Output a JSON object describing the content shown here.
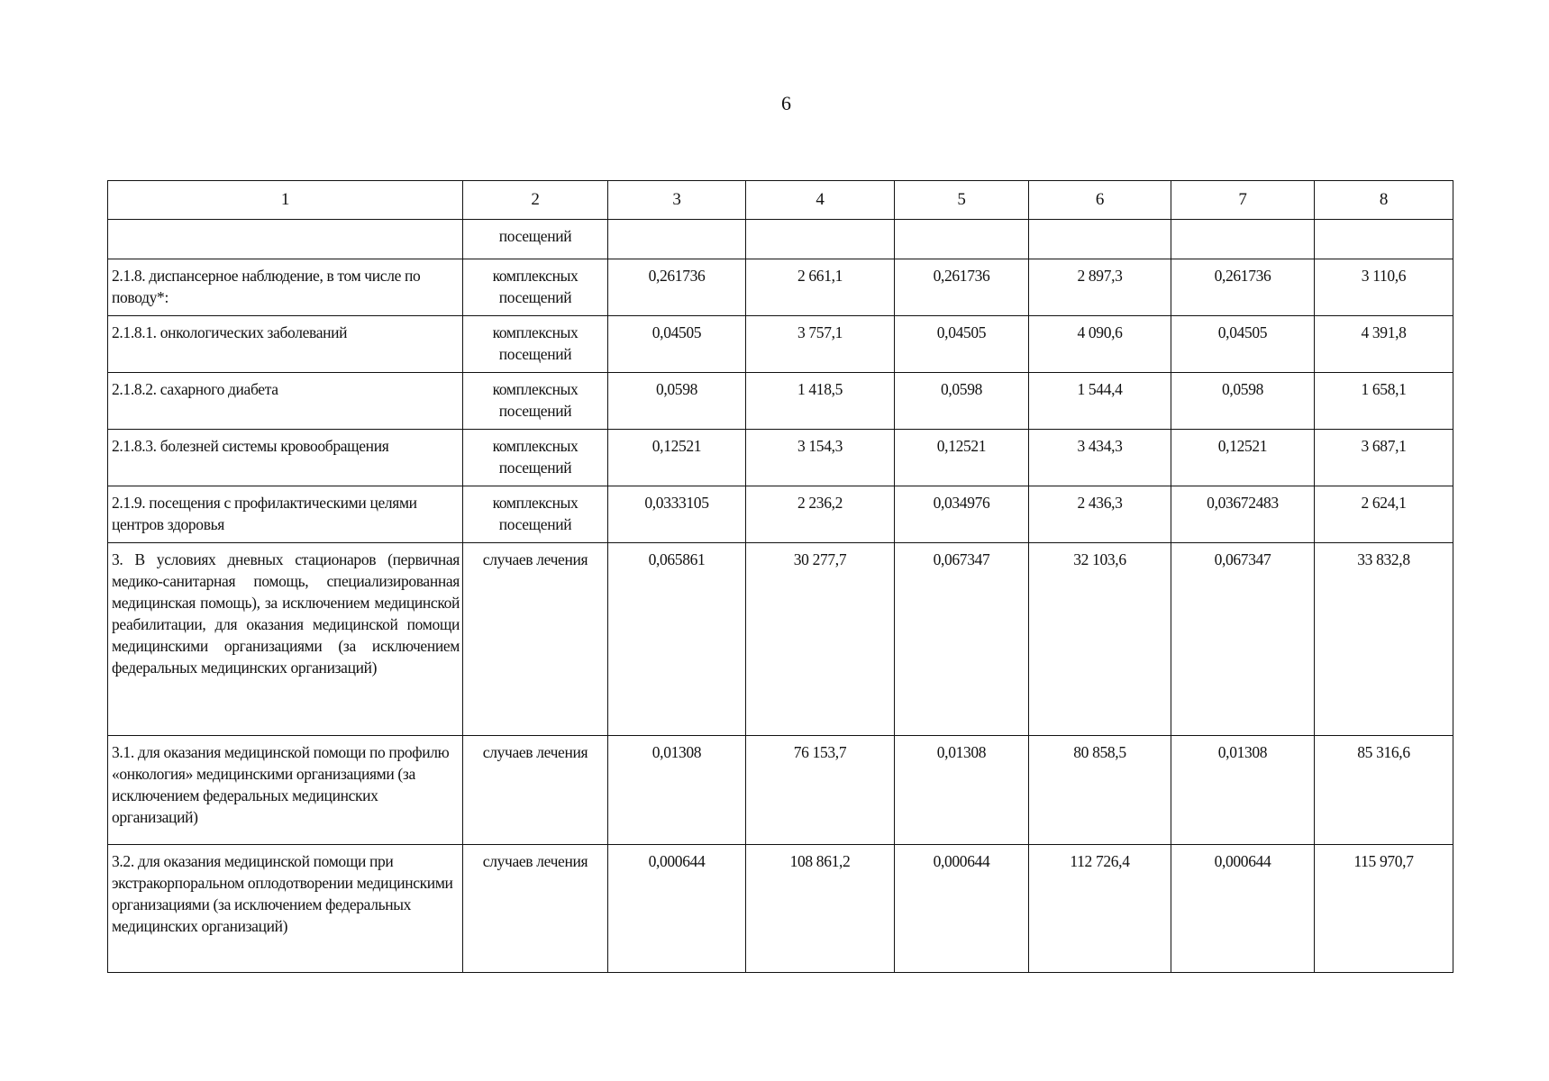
{
  "page_number": "6",
  "table": {
    "header": [
      "1",
      "2",
      "3",
      "4",
      "5",
      "6",
      "7",
      "8"
    ],
    "rows": [
      {
        "name": "",
        "unit": "посещений",
        "values": [
          "",
          "",
          "",
          "",
          "",
          ""
        ]
      },
      {
        "name": "2.1.8. диспансерное наблюдение, в том числе по поводу*:",
        "unit": "комплексных посещений",
        "values": [
          "0,261736",
          "2 661,1",
          "0,261736",
          "2 897,3",
          "0,261736",
          "3 110,6"
        ]
      },
      {
        "name": "2.1.8.1. онкологических заболеваний",
        "unit": "комплексных посещений",
        "values": [
          "0,04505",
          "3 757,1",
          "0,04505",
          "4 090,6",
          "0,04505",
          "4 391,8"
        ]
      },
      {
        "name": "2.1.8.2. сахарного диабета",
        "unit": "комплексных посещений",
        "values": [
          "0,0598",
          "1 418,5",
          "0,0598",
          "1 544,4",
          "0,0598",
          "1 658,1"
        ]
      },
      {
        "name": "2.1.8.3. болезней системы кровообращения",
        "unit": "комплексных посещений",
        "values": [
          "0,12521",
          "3 154,3",
          "0,12521",
          "3 434,3",
          "0,12521",
          "3 687,1"
        ]
      },
      {
        "name": "2.1.9. посещения с профилактическими целями центров здоровья",
        "unit": "комплексных посещений",
        "values": [
          "0,0333105",
          "2 236,2",
          "0,034976",
          "2 436,3",
          "0,03672483",
          "2 624,1"
        ]
      },
      {
        "name": "3. В условиях дневных стационаров (первичная медико-санитарная помощь, специализированная медицинская помощь), за исключением медицинской реабилитации, для оказания медицинской помощи медицинскими организациями (за исключением федеральных медицинских организаций)",
        "unit": "случаев лечения",
        "values": [
          "0,065861",
          "30 277,7",
          "0,067347",
          "32 103,6",
          "0,067347",
          "33 832,8"
        ]
      },
      {
        "name": "3.1. для оказания медицинской помощи по профилю «онкология» медицинскими организациями (за исключением федеральных медицинских организаций)",
        "unit": "случаев лечения",
        "values": [
          "0,01308",
          "76 153,7",
          "0,01308",
          "80 858,5",
          "0,01308",
          "85 316,6"
        ]
      },
      {
        "name": "3.2. для оказания медицинской помощи при экстракорпоральном оплодотворении медицинскими организациями (за исключением федеральных медицинских организаций)",
        "unit": "случаев лечения",
        "values": [
          "0,000644",
          "108 861,2",
          "0,000644",
          "112 726,4",
          "0,000644",
          "115 970,7"
        ]
      }
    ]
  }
}
